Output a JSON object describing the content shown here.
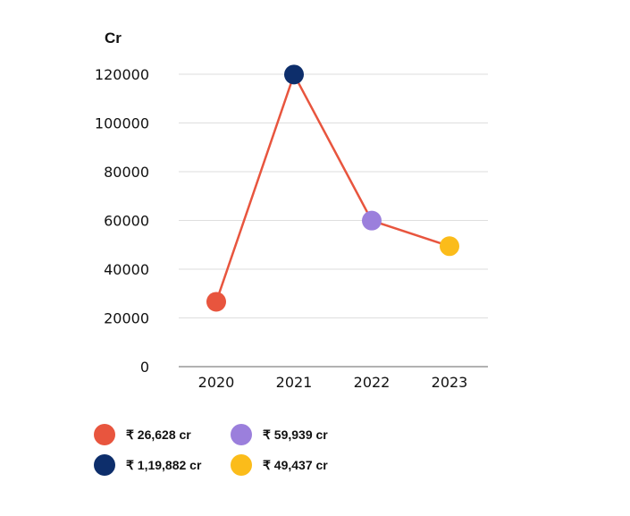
{
  "chart_data": {
    "type": "line",
    "unit_label": "Cr",
    "categories": [
      "2020",
      "2021",
      "2022",
      "2023"
    ],
    "values": [
      26628,
      119882,
      59939,
      49437
    ],
    "ylim": [
      0,
      120000
    ],
    "yticks": [
      "0",
      "20000",
      "40000",
      "60000",
      "80000",
      "100000",
      "120000"
    ],
    "grid": true,
    "line_color": "#e8553e",
    "point_colors": [
      "#e8553e",
      "#0d2e6b",
      "#9b7fdc",
      "#fbbc1a"
    ],
    "legend": [
      {
        "label": "₹ 26,628 cr",
        "color": "#e8553e"
      },
      {
        "label": "₹ 1,19,882 cr",
        "color": "#0d2e6b"
      },
      {
        "label": "₹ 59,939 cr",
        "color": "#9b7fdc"
      },
      {
        "label": "₹ 49,437 cr",
        "color": "#fbbc1a"
      }
    ]
  }
}
